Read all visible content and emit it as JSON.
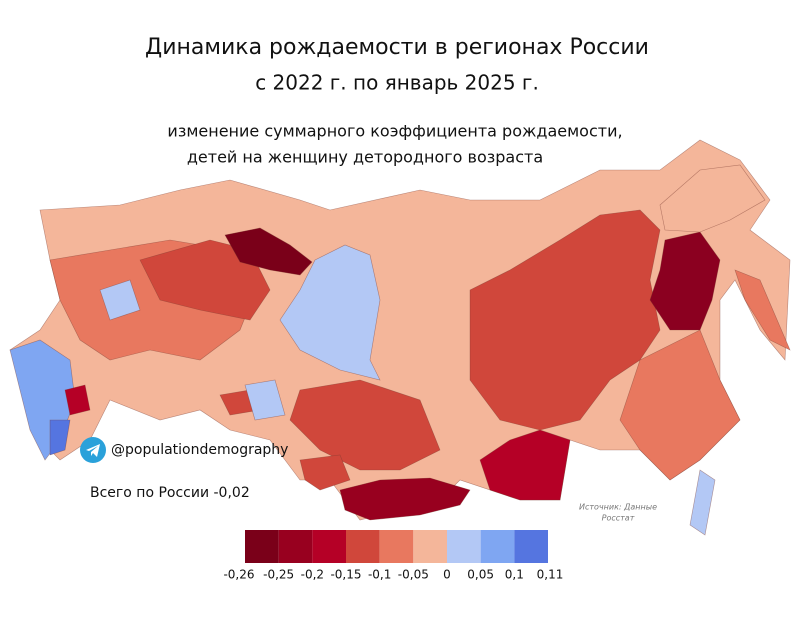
{
  "title": "Динамика рождаемости в регионах России",
  "subtitle": "с 2022 г. по январь 2025 г.",
  "description": [
    "изменение суммарного коэффициента рождаемости,",
    "детей на женщину детородного возраста"
  ],
  "channel": "@populationdemography",
  "total": "Всего по России -0,02",
  "source": [
    "Источник: Данные",
    "Росстат"
  ],
  "legend": {
    "colors": [
      "#7a0019",
      "#98001f",
      "#b50026",
      "#d0473b",
      "#e8785f",
      "#f4b69a",
      "#b3c8f5",
      "#7fa6f2",
      "#5575e0"
    ],
    "ticks": [
      {
        "value": -0.26,
        "label": "-0,26"
      },
      {
        "value": -0.25,
        "label": "-0,25"
      },
      {
        "value": -0.2,
        "label": "-0,2"
      },
      {
        "value": -0.15,
        "label": "-0,15"
      },
      {
        "value": -0.1,
        "label": "-0,1"
      },
      {
        "value": -0.05,
        "label": "-0,05"
      },
      0,
      {
        "value": 0.05,
        "label": "0,05"
      },
      {
        "value": 0.1,
        "label": "0,1"
      },
      {
        "value": 0.11,
        "label": "0,11"
      }
    ]
  }
}
